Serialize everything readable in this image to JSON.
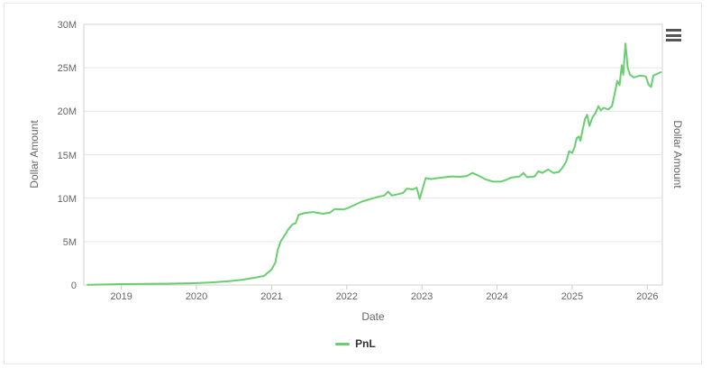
{
  "colors": {
    "line": "#69ce6f",
    "grid": "#e6e6e6",
    "axis": "#d0d0d0",
    "tick": "#cccccc",
    "label": "#666666",
    "legend_text": "#333333",
    "menu_icon": "#555555",
    "panel_border": "#e8e8e8"
  },
  "menu": {
    "icon": "hamburger-menu-icon"
  },
  "chart_data": {
    "type": "line",
    "title": "",
    "xlabel": "Date",
    "ylabel_left": "Dollar Amount",
    "ylabel_right": "Dollar Amount",
    "unit": "millions of dollars",
    "xlim": [
      2018.5,
      2026.2
    ],
    "ylim": [
      0,
      30000000
    ],
    "grid": "horizontal",
    "legend_position": "bottom-center",
    "x_ticks": [
      {
        "value": 2019,
        "label": "2019"
      },
      {
        "value": 2020,
        "label": "2020"
      },
      {
        "value": 2021,
        "label": "2021"
      },
      {
        "value": 2022,
        "label": "2022"
      },
      {
        "value": 2023,
        "label": "2023"
      },
      {
        "value": 2024,
        "label": "2024"
      },
      {
        "value": 2025,
        "label": "2025"
      },
      {
        "value": 2026,
        "label": "2026"
      }
    ],
    "y_ticks": [
      {
        "value": 0,
        "label": "0"
      },
      {
        "value": 5,
        "label": "5M"
      },
      {
        "value": 10,
        "label": "10M"
      },
      {
        "value": 15,
        "label": "15M"
      },
      {
        "value": 20,
        "label": "20M"
      },
      {
        "value": 25,
        "label": "25M"
      },
      {
        "value": 30,
        "label": "30M"
      }
    ],
    "series": [
      {
        "name": "PnL",
        "color": "#69ce6f",
        "points": [
          [
            2018.55,
            0.02
          ],
          [
            2018.8,
            0.06
          ],
          [
            2019.0,
            0.1
          ],
          [
            2019.3,
            0.13
          ],
          [
            2019.6,
            0.16
          ],
          [
            2019.9,
            0.2
          ],
          [
            2020.0,
            0.22
          ],
          [
            2020.2,
            0.3
          ],
          [
            2020.4,
            0.42
          ],
          [
            2020.6,
            0.6
          ],
          [
            2020.75,
            0.8
          ],
          [
            2020.9,
            1.05
          ],
          [
            2021.0,
            1.8
          ],
          [
            2021.05,
            2.6
          ],
          [
            2021.08,
            4.0
          ],
          [
            2021.12,
            5.0
          ],
          [
            2021.18,
            5.8
          ],
          [
            2021.22,
            6.4
          ],
          [
            2021.28,
            7.0
          ],
          [
            2021.32,
            7.1
          ],
          [
            2021.36,
            8.1
          ],
          [
            2021.45,
            8.3
          ],
          [
            2021.55,
            8.4
          ],
          [
            2021.62,
            8.3
          ],
          [
            2021.68,
            8.2
          ],
          [
            2021.78,
            8.35
          ],
          [
            2021.84,
            8.75
          ],
          [
            2021.95,
            8.7
          ],
          [
            2022.0,
            8.8
          ],
          [
            2022.1,
            9.2
          ],
          [
            2022.2,
            9.6
          ],
          [
            2022.32,
            9.9
          ],
          [
            2022.42,
            10.15
          ],
          [
            2022.5,
            10.3
          ],
          [
            2022.55,
            10.75
          ],
          [
            2022.6,
            10.3
          ],
          [
            2022.68,
            10.45
          ],
          [
            2022.75,
            10.6
          ],
          [
            2022.8,
            11.1
          ],
          [
            2022.88,
            11.0
          ],
          [
            2022.93,
            11.2
          ],
          [
            2022.97,
            9.9
          ],
          [
            2023.0,
            10.8
          ],
          [
            2023.05,
            12.3
          ],
          [
            2023.12,
            12.2
          ],
          [
            2023.25,
            12.35
          ],
          [
            2023.4,
            12.5
          ],
          [
            2023.5,
            12.45
          ],
          [
            2023.6,
            12.55
          ],
          [
            2023.67,
            12.9
          ],
          [
            2023.75,
            12.6
          ],
          [
            2023.85,
            12.15
          ],
          [
            2023.95,
            11.9
          ],
          [
            2024.05,
            11.9
          ],
          [
            2024.12,
            12.1
          ],
          [
            2024.18,
            12.35
          ],
          [
            2024.3,
            12.5
          ],
          [
            2024.35,
            12.9
          ],
          [
            2024.4,
            12.4
          ],
          [
            2024.5,
            12.5
          ],
          [
            2024.55,
            13.1
          ],
          [
            2024.6,
            12.9
          ],
          [
            2024.68,
            13.3
          ],
          [
            2024.75,
            12.9
          ],
          [
            2024.82,
            13.0
          ],
          [
            2024.87,
            13.5
          ],
          [
            2024.92,
            14.2
          ],
          [
            2024.96,
            15.4
          ],
          [
            2025.0,
            15.2
          ],
          [
            2025.03,
            15.8
          ],
          [
            2025.06,
            16.9
          ],
          [
            2025.09,
            17.1
          ],
          [
            2025.11,
            16.6
          ],
          [
            2025.14,
            17.9
          ],
          [
            2025.17,
            19.1
          ],
          [
            2025.2,
            19.6
          ],
          [
            2025.23,
            18.3
          ],
          [
            2025.27,
            19.3
          ],
          [
            2025.31,
            19.8
          ],
          [
            2025.35,
            20.6
          ],
          [
            2025.38,
            20.1
          ],
          [
            2025.42,
            20.4
          ],
          [
            2025.48,
            20.2
          ],
          [
            2025.53,
            20.6
          ],
          [
            2025.57,
            22.2
          ],
          [
            2025.6,
            23.5
          ],
          [
            2025.63,
            23.0
          ],
          [
            2025.66,
            25.3
          ],
          [
            2025.68,
            24.2
          ],
          [
            2025.71,
            27.8
          ],
          [
            2025.74,
            25.0
          ],
          [
            2025.77,
            24.2
          ],
          [
            2025.82,
            23.9
          ],
          [
            2025.9,
            24.1
          ],
          [
            2025.98,
            24.0
          ],
          [
            2026.02,
            23.0
          ],
          [
            2026.05,
            22.8
          ],
          [
            2026.08,
            24.1
          ],
          [
            2026.13,
            24.3
          ],
          [
            2026.18,
            24.5
          ]
        ]
      }
    ]
  }
}
